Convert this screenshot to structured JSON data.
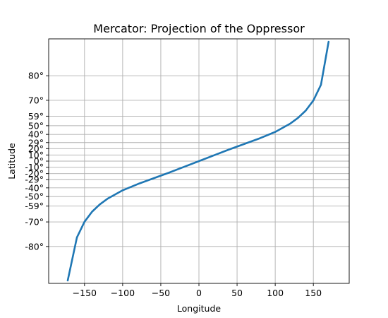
{
  "chart_data": {
    "type": "line",
    "title": "Mercator: Projection of the Oppressor",
    "xlabel": "Longitude",
    "ylabel": "Latitude",
    "xlim": [
      -197,
      197
    ],
    "ylim_latitude_deg": [
      -86.5,
      86.5
    ],
    "y_scale": "mercator (tick labels in degrees latitude)",
    "grid": true,
    "legend": "none",
    "x_ticks": [
      -150,
      -100,
      -50,
      0,
      50,
      100,
      150
    ],
    "x_tick_labels": [
      "−150",
      "−100",
      "−50",
      "0",
      "50",
      "100",
      "150"
    ],
    "y_ticks_deg": [
      -80,
      -70,
      -59,
      -50,
      -40,
      -29,
      -20,
      -10,
      0,
      10,
      20,
      29,
      40,
      50,
      59,
      70,
      80
    ],
    "y_tick_labels": [
      "-80°",
      "-70°",
      "-59°",
      "-50°",
      "-40°",
      "-29°",
      "-20°",
      "-10°",
      "0°",
      "10°",
      "20°",
      "29°",
      "40°",
      "50°",
      "59°",
      "70°",
      "80°"
    ],
    "series": [
      {
        "color": "#1f77b4",
        "x": [
          -172,
          -160,
          -150,
          -140,
          -130,
          -120,
          -100,
          -80,
          -60,
          -40,
          -20,
          0,
          20,
          40,
          60,
          80,
          100,
          120,
          130,
          140,
          150,
          160,
          170
        ],
        "y_deg": [
          -86.2,
          -77.1,
          -69.9,
          -63.4,
          -57.6,
          -52.3,
          -43.0,
          -35.0,
          -27.2,
          -18.8,
          -9.6,
          0,
          9.6,
          18.8,
          27.2,
          35.0,
          43.0,
          52.3,
          57.6,
          63.4,
          69.9,
          77.1,
          86.2
        ]
      }
    ]
  }
}
